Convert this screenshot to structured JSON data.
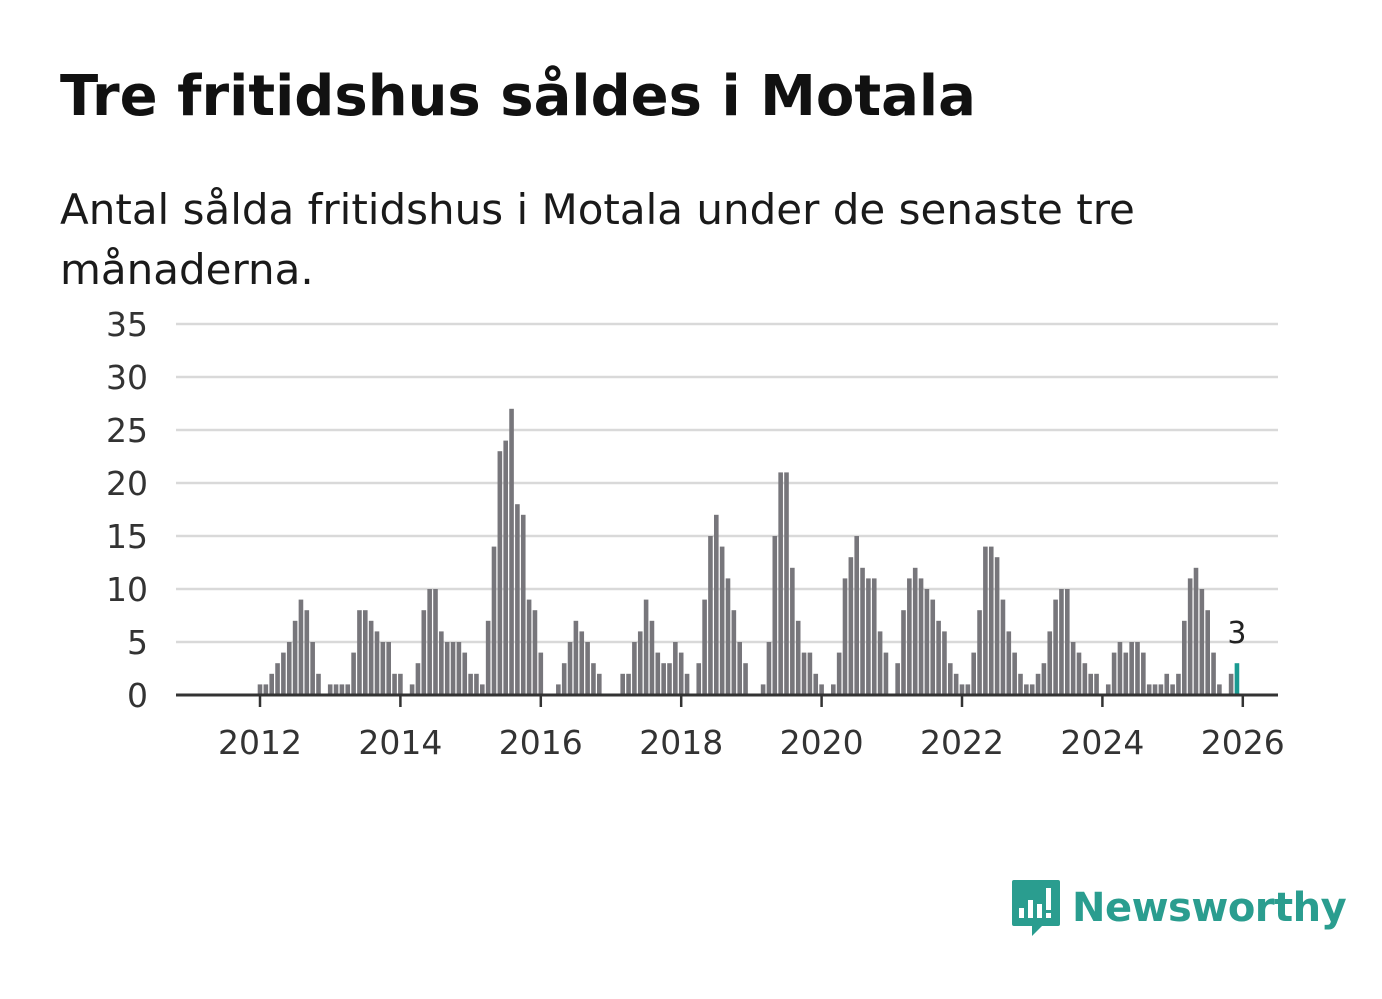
{
  "title": "Tre fritidshus såldes i Motala",
  "subtitle": "Antal sålda fritidshus i Motala under de senaste tre månaderna.",
  "brand": {
    "name": "Newsworthy",
    "icon": "newsworthy-logo-icon",
    "color": "#2a9d8f"
  },
  "colors": {
    "bar": "#77767b",
    "highlight": "#1a9a91",
    "grid": "#d9d9d9",
    "axis": "#333333"
  },
  "chart_data": {
    "type": "bar",
    "title": "Tre fritidshus såldes i Motala",
    "xlabel": "",
    "ylabel": "",
    "ylim": [
      0,
      35
    ],
    "yticks": [
      "0",
      "5",
      "10",
      "15",
      "20",
      "25",
      "30",
      "35"
    ],
    "xticks": [
      "2012",
      "2014",
      "2016",
      "2018",
      "2020",
      "2022",
      "2024",
      "2026"
    ],
    "start": "2011-03",
    "end": "2026-03",
    "highlight_label": "3",
    "values": [
      0,
      0,
      0,
      0,
      0,
      0,
      0,
      0,
      0,
      0,
      1,
      1,
      2,
      3,
      4,
      5,
      7,
      9,
      8,
      5,
      2,
      0,
      1,
      1,
      1,
      1,
      4,
      8,
      8,
      7,
      6,
      5,
      5,
      2,
      2,
      0,
      1,
      3,
      8,
      10,
      10,
      6,
      5,
      5,
      5,
      4,
      2,
      2,
      1,
      7,
      14,
      23,
      24,
      27,
      18,
      17,
      9,
      8,
      4,
      0,
      0,
      1,
      3,
      5,
      7,
      6,
      5,
      3,
      2,
      0,
      0,
      0,
      2,
      2,
      5,
      6,
      9,
      7,
      4,
      3,
      3,
      5,
      4,
      2,
      0,
      3,
      9,
      15,
      17,
      14,
      11,
      8,
      5,
      3,
      0,
      0,
      1,
      5,
      15,
      21,
      21,
      12,
      7,
      4,
      4,
      2,
      1,
      0,
      1,
      4,
      11,
      13,
      15,
      12,
      11,
      11,
      6,
      4,
      0,
      3,
      8,
      11,
      12,
      11,
      10,
      9,
      7,
      6,
      3,
      2,
      1,
      1,
      4,
      8,
      14,
      14,
      13,
      9,
      6,
      4,
      2,
      1,
      1,
      2,
      3,
      6,
      9,
      10,
      10,
      5,
      4,
      3,
      2,
      2,
      0,
      1,
      4,
      5,
      4,
      5,
      5,
      4,
      1,
      1,
      1,
      2,
      1,
      2,
      7,
      11,
      12,
      10,
      8,
      4,
      1,
      0,
      2,
      3
    ]
  }
}
